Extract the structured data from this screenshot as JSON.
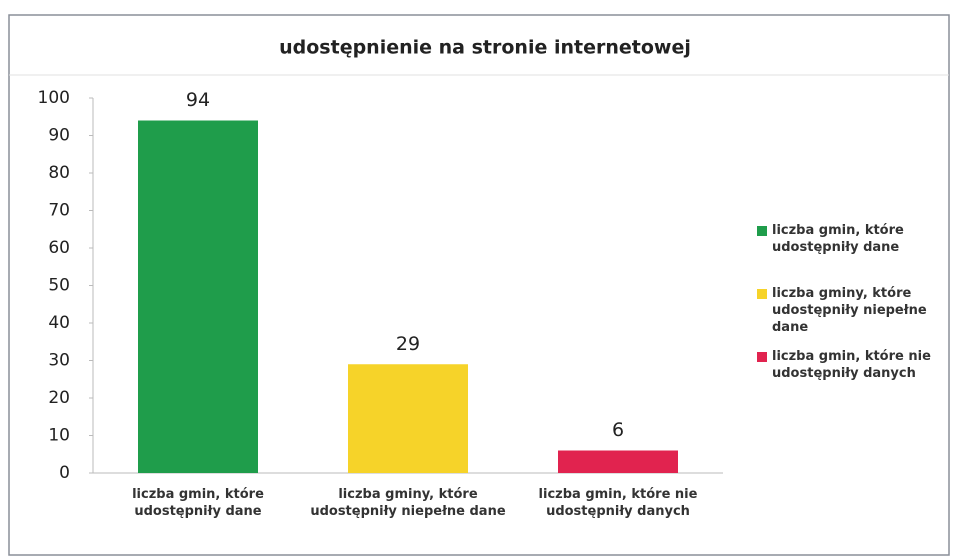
{
  "chart_data": {
    "type": "bar",
    "title": "udostępnienie na stronie internetowej",
    "categories": [
      "liczba gmin, które udostępniły dane",
      "liczba gminy, które udostępniły niepełne dane",
      "liczba gmin, które nie udostępniły danych"
    ],
    "values": [
      94,
      29,
      6
    ],
    "colors": [
      "#1f9d4b",
      "#f6d329",
      "#e1234f"
    ],
    "ylim": [
      0,
      100
    ],
    "yticks": [
      0,
      10,
      20,
      30,
      40,
      50,
      60,
      70,
      80,
      90,
      100
    ],
    "grid": false,
    "legend": "right"
  }
}
